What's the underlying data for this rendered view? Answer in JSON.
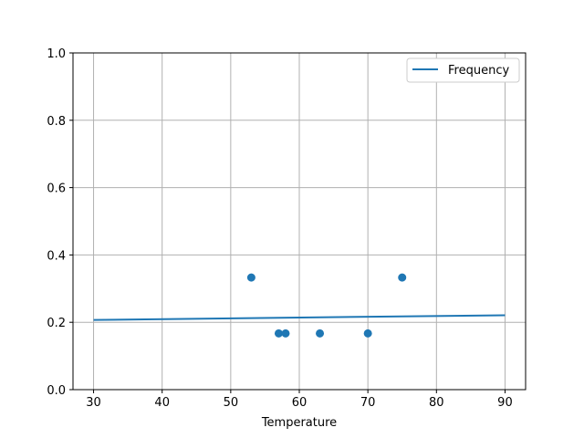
{
  "chart_data": {
    "type": "scatter",
    "title": "",
    "xlabel": "Temperature",
    "ylabel": "",
    "xlim": [
      27,
      93
    ],
    "ylim": [
      0,
      1
    ],
    "xticks": [
      30,
      40,
      50,
      60,
      70,
      80,
      90
    ],
    "yticks": [
      0.0,
      0.2,
      0.4,
      0.6,
      0.8,
      1.0
    ],
    "ytick_labels": [
      "0.0",
      "0.2",
      "0.4",
      "0.6",
      "0.8",
      "1.0"
    ],
    "grid": true,
    "legend_position": "top-right",
    "colors": {
      "series": "#1f77b4"
    },
    "points": {
      "x": [
        53,
        57,
        58,
        63,
        70,
        75
      ],
      "y": [
        0.333,
        0.167,
        0.167,
        0.167,
        0.167,
        0.333
      ]
    },
    "line": {
      "name": "Frequency",
      "x": [
        30,
        90
      ],
      "y": [
        0.207,
        0.221
      ]
    }
  }
}
